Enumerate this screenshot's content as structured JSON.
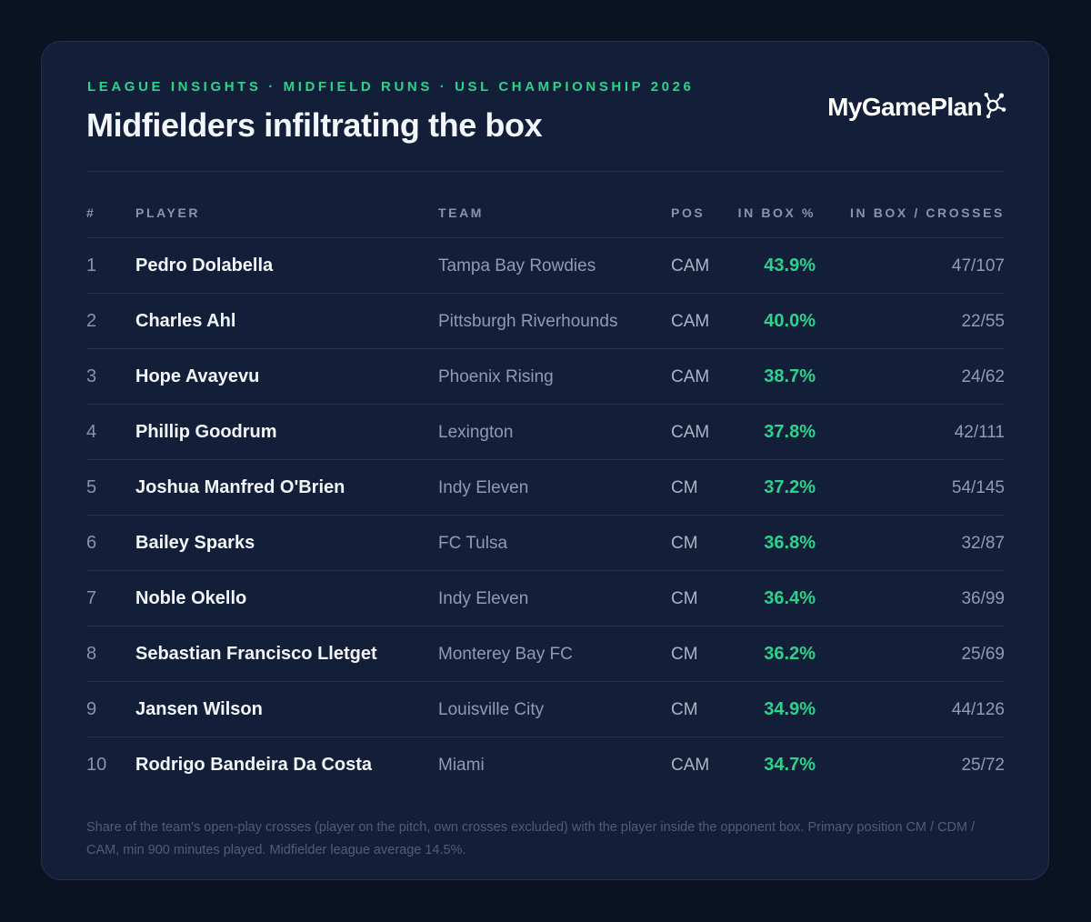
{
  "header": {
    "eyebrow": "LEAGUE INSIGHTS · MIDFIELD RUNS · USL CHAMPIONSHIP 2026",
    "title": "Midfielders infiltrating the box",
    "logo_text": "MyGamePlan",
    "logo_icon": "node-network-icon"
  },
  "colors": {
    "background": "#0b1322",
    "card": "#131f38",
    "accent": "#2bd38c",
    "muted": "#8794ad"
  },
  "table": {
    "columns": [
      "#",
      "PLAYER",
      "TEAM",
      "POS",
      "IN BOX %",
      "IN BOX / CROSSES"
    ],
    "rows": [
      {
        "rank": "1",
        "player": "Pedro Dolabella",
        "team": "Tampa Bay Rowdies",
        "pos": "CAM",
        "pct": "43.9%",
        "ratio": "47/107"
      },
      {
        "rank": "2",
        "player": "Charles Ahl",
        "team": "Pittsburgh Riverhounds",
        "pos": "CAM",
        "pct": "40.0%",
        "ratio": "22/55"
      },
      {
        "rank": "3",
        "player": "Hope Avayevu",
        "team": "Phoenix Rising",
        "pos": "CAM",
        "pct": "38.7%",
        "ratio": "24/62"
      },
      {
        "rank": "4",
        "player": "Phillip Goodrum",
        "team": "Lexington",
        "pos": "CAM",
        "pct": "37.8%",
        "ratio": "42/111"
      },
      {
        "rank": "5",
        "player": "Joshua Manfred O'Brien",
        "team": "Indy Eleven",
        "pos": "CM",
        "pct": "37.2%",
        "ratio": "54/145"
      },
      {
        "rank": "6",
        "player": "Bailey Sparks",
        "team": "FC Tulsa",
        "pos": "CM",
        "pct": "36.8%",
        "ratio": "32/87"
      },
      {
        "rank": "7",
        "player": "Noble Okello",
        "team": "Indy Eleven",
        "pos": "CM",
        "pct": "36.4%",
        "ratio": "36/99"
      },
      {
        "rank": "8",
        "player": "Sebastian Francisco Lletget",
        "team": "Monterey Bay FC",
        "pos": "CM",
        "pct": "36.2%",
        "ratio": "25/69"
      },
      {
        "rank": "9",
        "player": "Jansen Wilson",
        "team": "Louisville City",
        "pos": "CM",
        "pct": "34.9%",
        "ratio": "44/126"
      },
      {
        "rank": "10",
        "player": "Rodrigo Bandeira Da Costa",
        "team": "Miami",
        "pos": "CAM",
        "pct": "34.7%",
        "ratio": "25/72"
      }
    ]
  },
  "footnote": "Share of the team's open-play crosses (player on the pitch, own crosses excluded) with the player inside the opponent box. Primary position CM / CDM / CAM, min 900 minutes played. Midfielder league average 14.5%."
}
